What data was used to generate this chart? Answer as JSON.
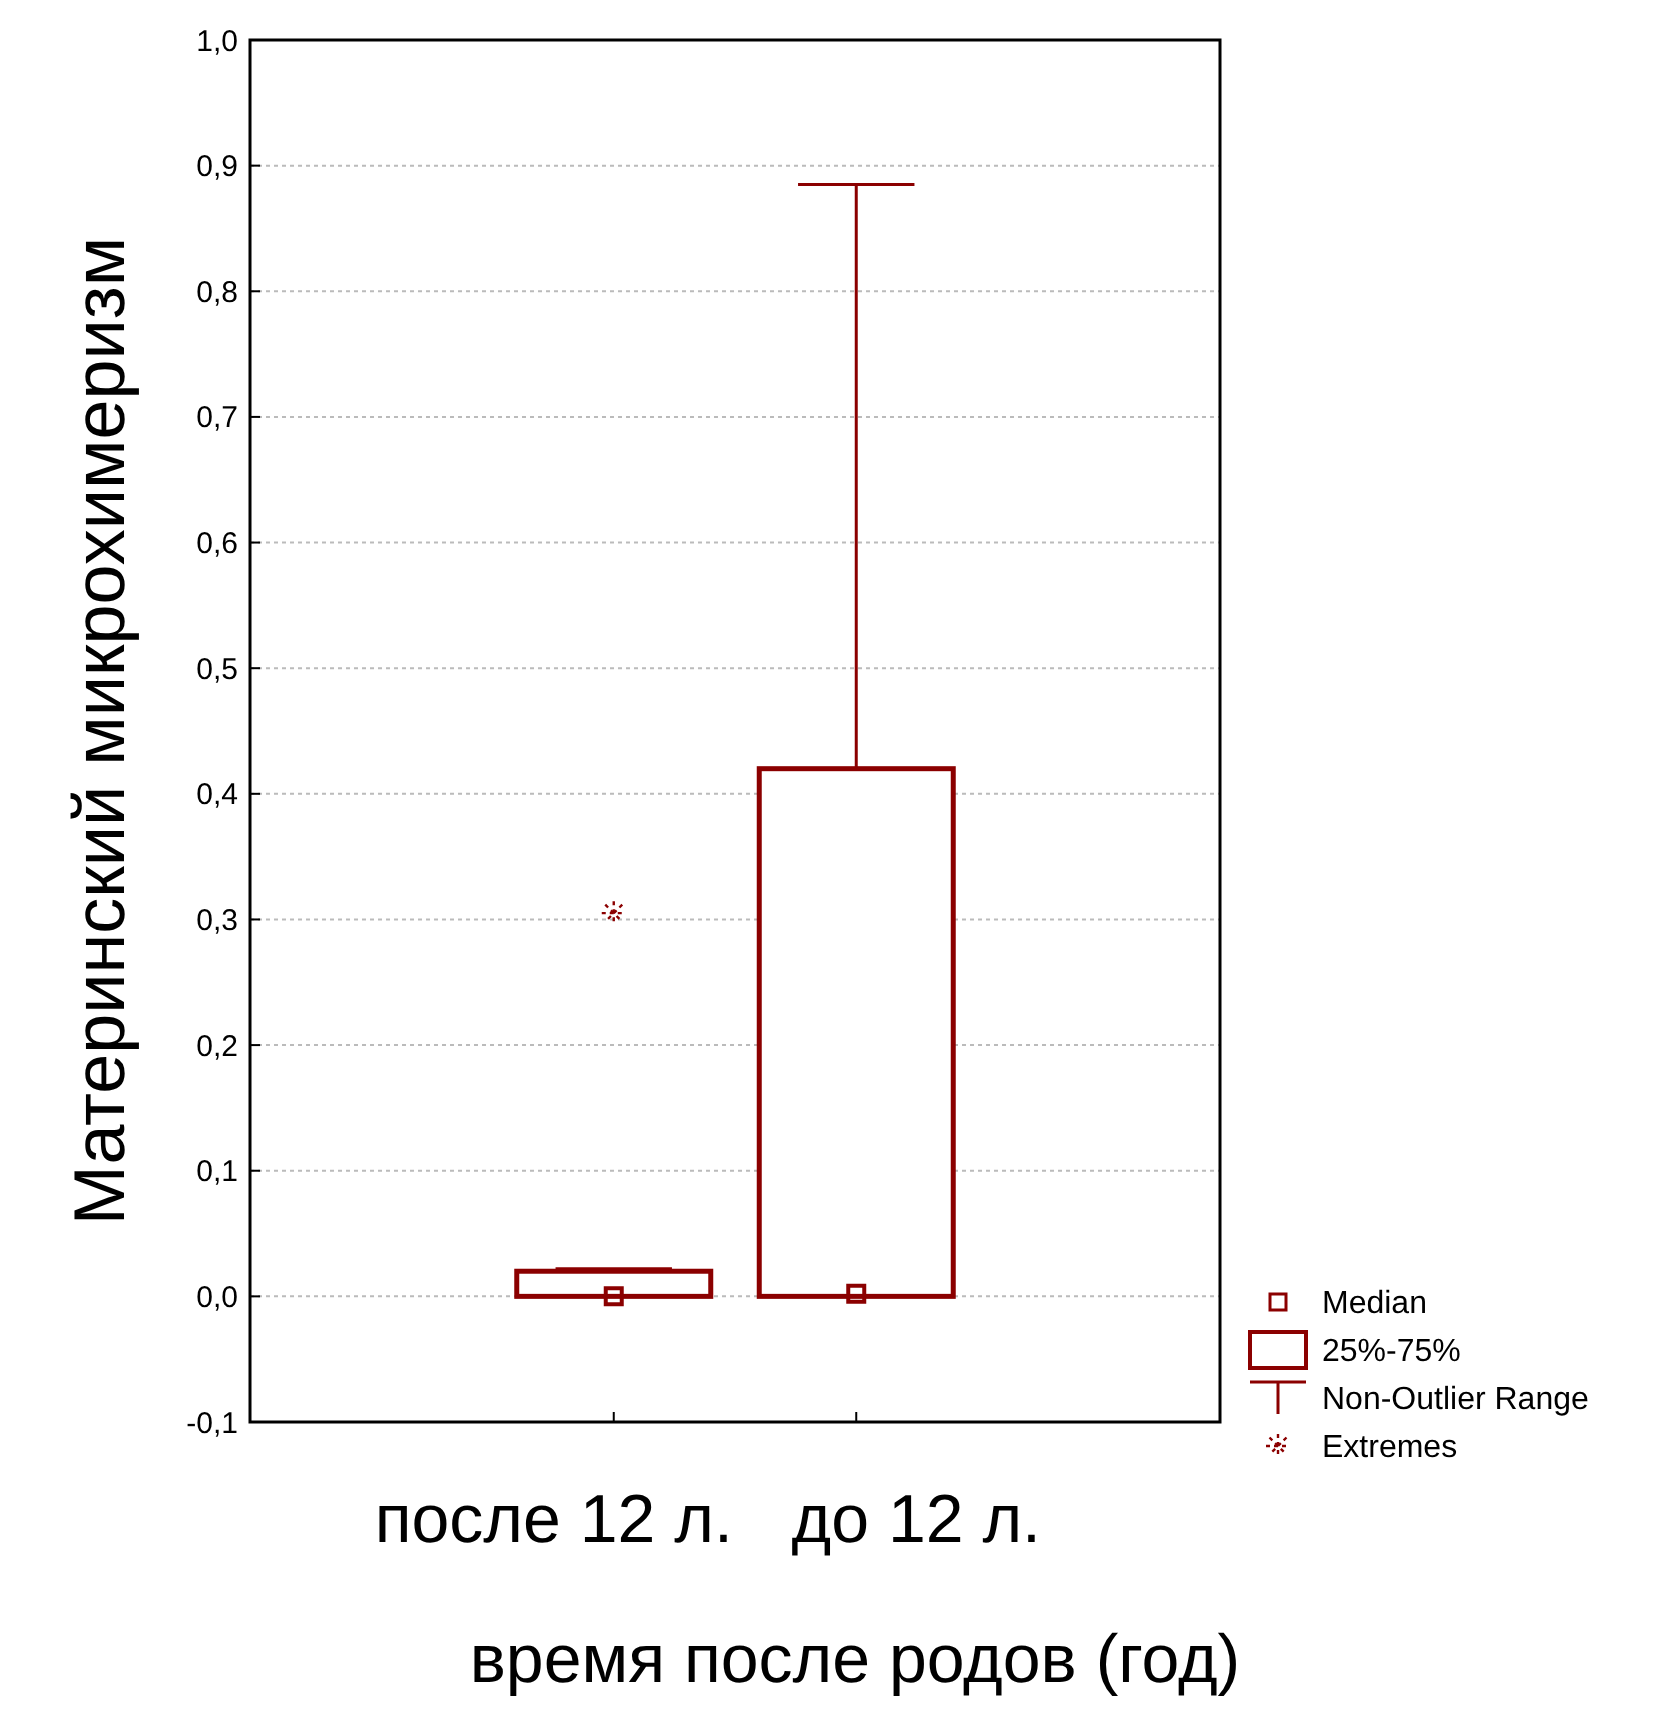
{
  "chart_data": {
    "type": "box",
    "xlabel": "время после родов (год)",
    "ylabel": "Материнский микрохимеризм",
    "categories": [
      "после 12 л.",
      "до 12 л."
    ],
    "boxes": [
      {
        "low": 0,
        "q1": 0,
        "median": 0,
        "q3": 0.02,
        "high": 0.022,
        "outliers": [
          0.305
        ]
      },
      {
        "low": 0,
        "q1": 0,
        "median": 0.002,
        "q3": 0.42,
        "high": 0.885
      }
    ],
    "color": "#8b0000",
    "ylim": [
      -0.1,
      1
    ],
    "yticks": [
      {
        "value": -0.1,
        "label": "-0,1"
      },
      {
        "value": 0,
        "label": "0,0"
      },
      {
        "value": 0.1,
        "label": "0,1"
      },
      {
        "value": 0.2,
        "label": "0,2"
      },
      {
        "value": 0.3,
        "label": "0,3"
      },
      {
        "value": 0.4,
        "label": "0,4"
      },
      {
        "value": 0.5,
        "label": "0,5"
      },
      {
        "value": 0.6,
        "label": "0,6"
      },
      {
        "value": 0.7,
        "label": "0,7"
      },
      {
        "value": 0.8,
        "label": "0,8"
      },
      {
        "value": 0.9,
        "label": "0,9"
      },
      {
        "value": 1,
        "label": "1,0"
      }
    ],
    "grid": "y",
    "annotations": [
      "Median",
      "25%-75%",
      "Non-Outlier Range",
      "Extremes"
    ]
  }
}
